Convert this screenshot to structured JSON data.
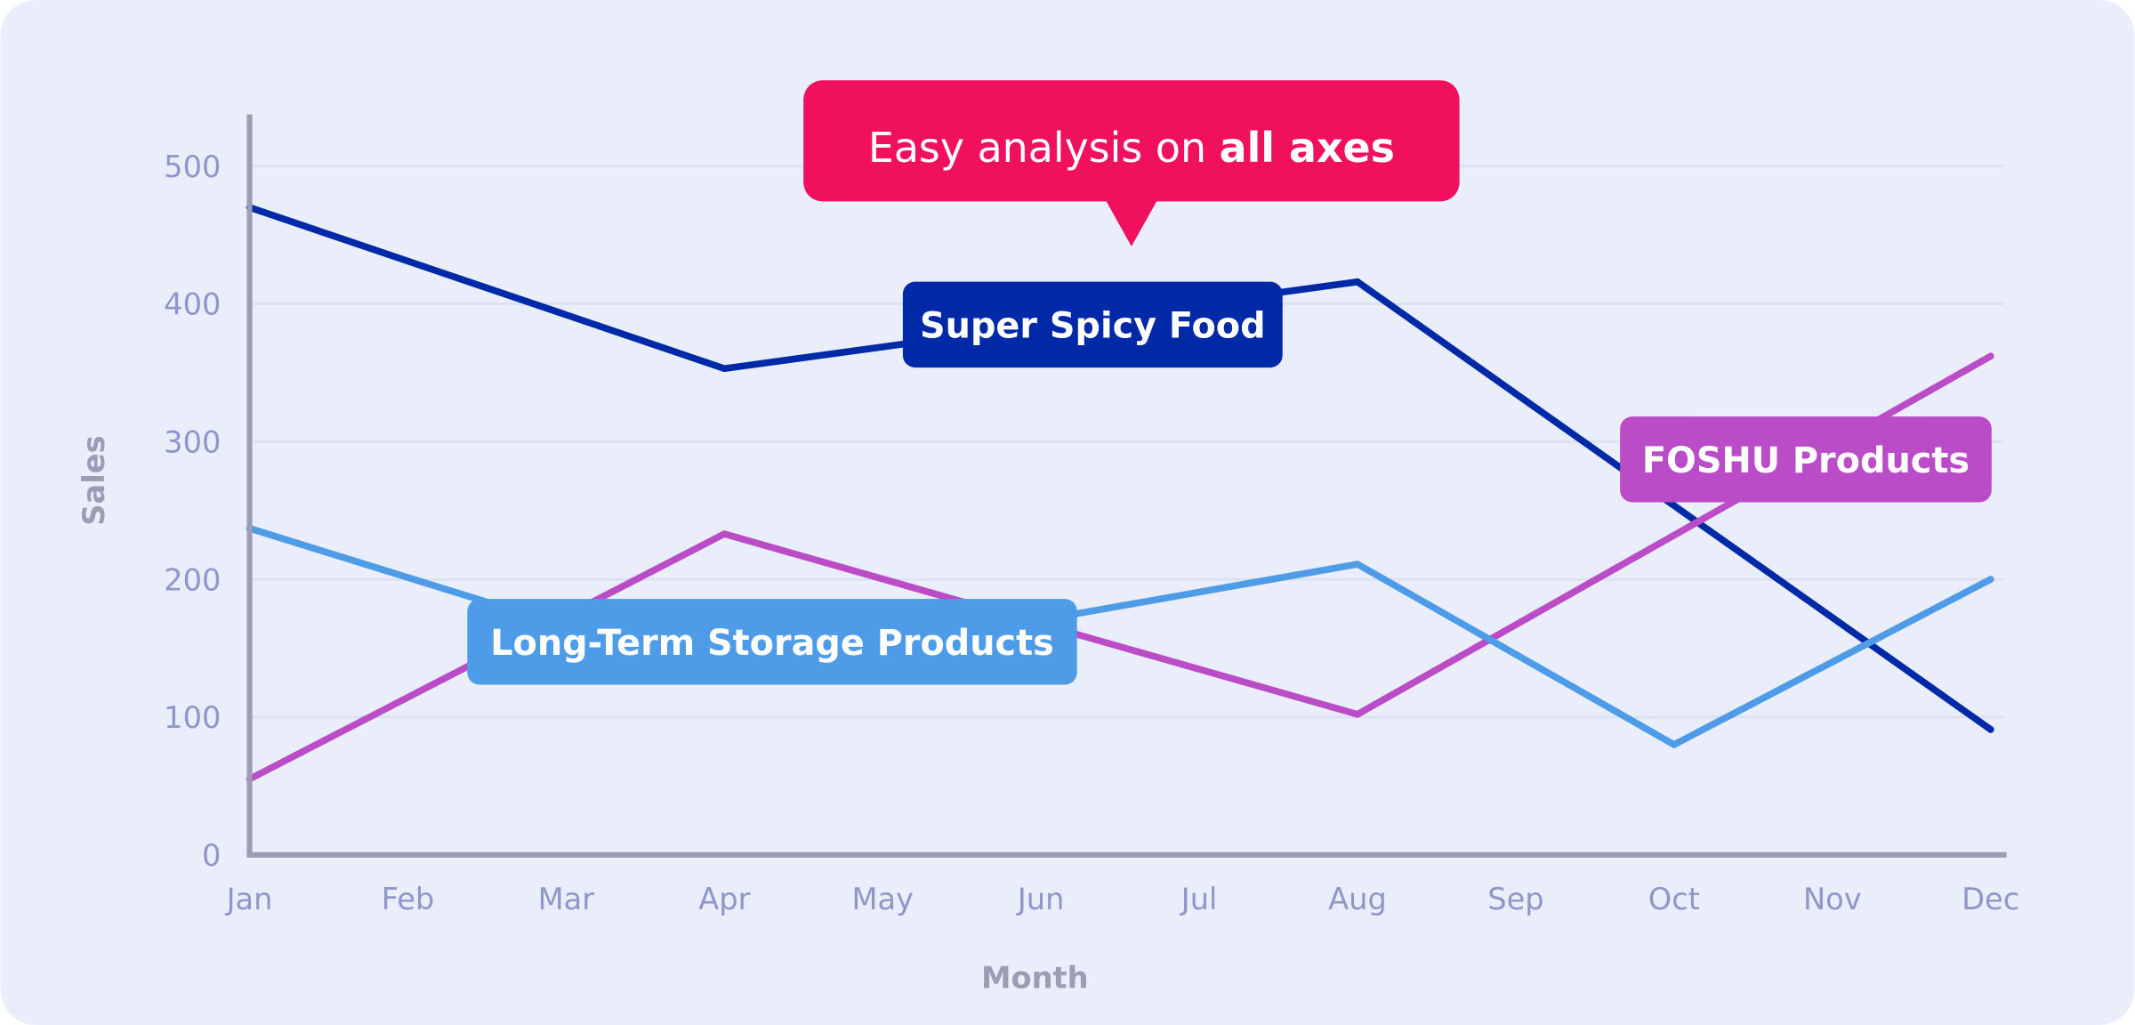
{
  "chart_data": {
    "type": "line",
    "callout": {
      "text_regular": "Easy analysis on ",
      "text_bold": "all axes",
      "color": "#F0105E"
    },
    "xlabel": "Month",
    "ylabel": "Sales",
    "categories": [
      "Jan",
      "Feb",
      "Mar",
      "Apr",
      "May",
      "Jun",
      "Jul",
      "Aug",
      "Sep",
      "Oct",
      "Nov",
      "Dec"
    ],
    "yticks": [
      0,
      100,
      200,
      300,
      400,
      500
    ],
    "ylim": [
      0,
      540
    ],
    "grid": true,
    "series": [
      {
        "name": "Super Spicy Food",
        "color": "#0029A8",
        "points": [
          [
            "Jan",
            470
          ],
          [
            "Apr",
            353
          ],
          [
            "Aug",
            416
          ],
          [
            "Dec",
            91
          ]
        ]
      },
      {
        "name": "FOSHU Products",
        "color": "#BB4CC8",
        "points": [
          [
            "Jan",
            55
          ],
          [
            "Apr",
            233
          ],
          [
            "Aug",
            102
          ],
          [
            "Dec",
            362
          ]
        ]
      },
      {
        "name": "Long-Term Storage Products",
        "color": "#4E9BE8",
        "points": [
          [
            "Jan",
            237
          ],
          [
            "Apr",
            130
          ],
          [
            "Aug",
            211
          ],
          [
            "Oct",
            80
          ],
          [
            "Dec",
            200
          ]
        ]
      }
    ]
  }
}
